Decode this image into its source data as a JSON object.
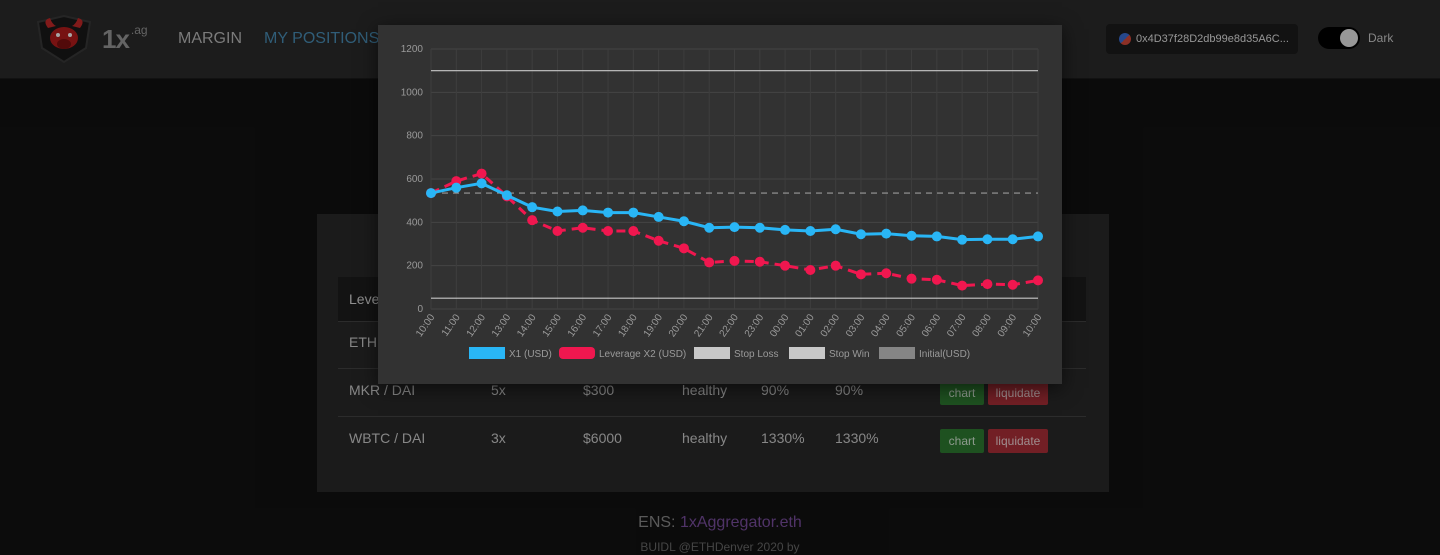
{
  "navbar": {
    "brand": "1x",
    "brand_sup": ".ag",
    "links": [
      "MARGIN",
      "MY POSITIONS"
    ],
    "wallet": "0x4D37f28D2db99e8d35A6C...",
    "theme_label": "Dark"
  },
  "table": {
    "first_header": "Leve",
    "rows": [
      {
        "pair": "ETH",
        "leverage": "",
        "amount": "",
        "status": "",
        "pct1": "",
        "pct2": ""
      },
      {
        "pair": "MKR / DAI",
        "leverage": "5x",
        "amount": "$300",
        "status": "healthy",
        "pct1": "90%",
        "pct2": "90%"
      },
      {
        "pair": "WBTC / DAI",
        "leverage": "3x",
        "amount": "$6000",
        "status": "healthy",
        "pct1": "1330%",
        "pct2": "1330%"
      }
    ],
    "chart_label": "chart",
    "liquidate_label": "liquidate"
  },
  "footer": {
    "ens_prefix": "ENS: ",
    "ens_name": "1xAggregator.eth",
    "buidl": "BUIDL @ETHDenver 2020 by"
  },
  "colors": {
    "x1": "#29b6f6",
    "lev": "#f0174f",
    "ref": "#c8c8c8",
    "nav_active": "#4a90b8"
  },
  "chart_data": {
    "type": "line",
    "x": [
      "10:00",
      "11:00",
      "12:00",
      "13:00",
      "14:00",
      "15:00",
      "16:00",
      "17:00",
      "18:00",
      "19:00",
      "20:00",
      "21:00",
      "22:00",
      "23:00",
      "00:00",
      "01:00",
      "02:00",
      "03:00",
      "04:00",
      "05:00",
      "06:00",
      "07:00",
      "08:00",
      "09:00",
      "10:00"
    ],
    "ylim": [
      0,
      1200
    ],
    "yticks": [
      0,
      200,
      400,
      600,
      800,
      1000,
      1200
    ],
    "grid": true,
    "legend_placement": "bottom",
    "series": [
      {
        "name": "X1 (USD)",
        "style": "solid",
        "values": [
          535,
          560,
          580,
          525,
          470,
          450,
          455,
          445,
          445,
          425,
          405,
          375,
          378,
          375,
          365,
          360,
          368,
          345,
          348,
          338,
          335,
          320,
          322,
          322,
          335
        ]
      },
      {
        "name": "Leverage X2 (USD)",
        "style": "dashed",
        "values": [
          535,
          590,
          625,
          520,
          410,
          360,
          375,
          360,
          360,
          315,
          280,
          215,
          222,
          218,
          200,
          180,
          200,
          160,
          165,
          140,
          135,
          108,
          115,
          112,
          132
        ]
      },
      {
        "name": "Stop Loss",
        "style": "solid-thin",
        "values": [
          50,
          50,
          50,
          50,
          50,
          50,
          50,
          50,
          50,
          50,
          50,
          50,
          50,
          50,
          50,
          50,
          50,
          50,
          50,
          50,
          50,
          50,
          50,
          50,
          50
        ]
      },
      {
        "name": "Stop Win",
        "style": "solid-thin",
        "values": [
          1100,
          1100,
          1100,
          1100,
          1100,
          1100,
          1100,
          1100,
          1100,
          1100,
          1100,
          1100,
          1100,
          1100,
          1100,
          1100,
          1100,
          1100,
          1100,
          1100,
          1100,
          1100,
          1100,
          1100,
          1100
        ]
      },
      {
        "name": "Initial(USD)",
        "style": "dashed-thin",
        "values": [
          535,
          535,
          535,
          535,
          535,
          535,
          535,
          535,
          535,
          535,
          535,
          535,
          535,
          535,
          535,
          535,
          535,
          535,
          535,
          535,
          535,
          535,
          535,
          535,
          535
        ]
      }
    ]
  }
}
